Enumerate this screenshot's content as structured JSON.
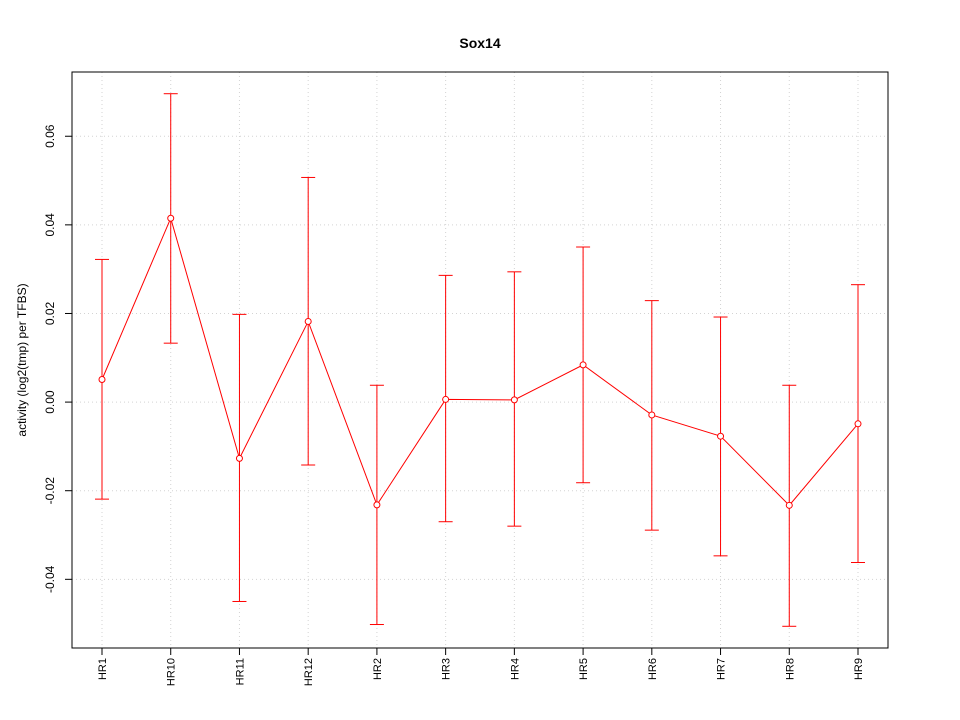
{
  "chart_data": {
    "type": "line",
    "title": "Sox14",
    "xlabel": "",
    "ylabel": "activity (log2(tmp) per TFBS)",
    "categories": [
      "HR1",
      "HR10",
      "HR11",
      "HR12",
      "HR2",
      "HR3",
      "HR4",
      "HR5",
      "HR6",
      "HR7",
      "HR8",
      "HR9"
    ],
    "series": [
      {
        "values": [
          0.0051,
          0.0415,
          -0.0127,
          0.0182,
          -0.0232,
          0.0006,
          0.0005,
          0.0084,
          -0.0029,
          -0.0077,
          -0.0233,
          -0.0049
        ],
        "upper": [
          0.0322,
          0.0696,
          0.0198,
          0.0507,
          0.0038,
          0.0286,
          0.0294,
          0.035,
          0.0229,
          0.0192,
          0.0038,
          0.0265
        ],
        "lower": [
          -0.0219,
          0.0133,
          -0.045,
          -0.0142,
          -0.0502,
          -0.027,
          -0.028,
          -0.0182,
          -0.0289,
          -0.0347,
          -0.0506,
          -0.0362
        ]
      }
    ],
    "ylim": [
      -0.0555,
      0.0745
    ],
    "yticks": [
      -0.04,
      -0.02,
      0.0,
      0.02,
      0.04,
      0.06
    ],
    "ytick_labels": [
      "-0.04",
      "-0.02",
      "0.00",
      "0.02",
      "0.04",
      "0.06"
    ],
    "grid": true,
    "color": "#ff0000",
    "grid_color": "#d3d3d3"
  }
}
